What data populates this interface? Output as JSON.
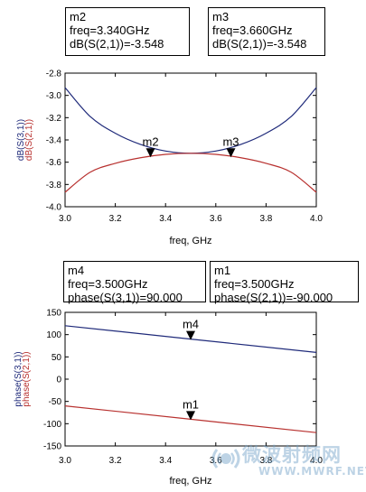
{
  "colors": {
    "blue_trace": "#1f2a7a",
    "red_trace": "#b8312f",
    "watermark": "#6e9fc6"
  },
  "chart_data": [
    {
      "type": "line",
      "xlabel": "freq, GHz",
      "ylabel_series": [
        "dB(S(3,1))",
        "dB(S(2,1))"
      ],
      "xlim": [
        3.0,
        4.0
      ],
      "ylim": [
        -4.0,
        -2.8
      ],
      "x_ticks": [
        "3.0",
        "3.2",
        "3.4",
        "3.6",
        "3.8",
        "4.0"
      ],
      "y_ticks": [
        "-2.8",
        "-3.0",
        "-3.2",
        "-3.4",
        "-3.6",
        "-3.8",
        "-4.0"
      ],
      "series": [
        {
          "name": "dB(S(3,1))",
          "color": "blue",
          "x": [
            3.0,
            3.1,
            3.2,
            3.3,
            3.4,
            3.5,
            3.6,
            3.7,
            3.8,
            3.9,
            4.0
          ],
          "y": [
            -2.93,
            -3.19,
            -3.34,
            -3.44,
            -3.5,
            -3.52,
            -3.5,
            -3.44,
            -3.34,
            -3.19,
            -2.93
          ]
        },
        {
          "name": "dB(S(2,1))",
          "color": "red",
          "x": [
            3.0,
            3.1,
            3.2,
            3.3,
            3.4,
            3.5,
            3.6,
            3.7,
            3.8,
            3.9,
            4.0
          ],
          "y": [
            -3.87,
            -3.69,
            -3.61,
            -3.56,
            -3.53,
            -3.52,
            -3.53,
            -3.56,
            -3.61,
            -3.69,
            -3.87
          ]
        }
      ],
      "markers": [
        {
          "label": "m2",
          "x": 3.34,
          "y": -3.548,
          "lines": [
            "m2",
            "freq=3.340GHz",
            "dB(S(2,1))=-3.548"
          ]
        },
        {
          "label": "m3",
          "x": 3.66,
          "y": -3.548,
          "lines": [
            "m3",
            "freq=3.660GHz",
            "dB(S(2,1))=-3.548"
          ]
        }
      ]
    },
    {
      "type": "line",
      "xlabel": "freq, GHz",
      "ylabel_series": [
        "phase(S(3,1))",
        "phase(S(2,1))"
      ],
      "xlim": [
        3.0,
        4.0
      ],
      "ylim": [
        -150,
        150
      ],
      "x_ticks": [
        "3.0",
        "3.2",
        "3.4",
        "3.6",
        "3.8",
        "4.0"
      ],
      "y_ticks": [
        "150",
        "100",
        "50",
        "0",
        "-50",
        "-100",
        "-150"
      ],
      "series": [
        {
          "name": "phase(S(3,1))",
          "color": "blue",
          "x": [
            3.0,
            3.5,
            4.0
          ],
          "y": [
            120,
            90,
            60
          ]
        },
        {
          "name": "phase(S(2,1))",
          "color": "red",
          "x": [
            3.0,
            3.5,
            4.0
          ],
          "y": [
            -60,
            -90,
            -120
          ]
        }
      ],
      "markers": [
        {
          "label": "m4",
          "x": 3.5,
          "y": 90,
          "lines": [
            "m4",
            "freq=3.500GHz",
            "phase(S(3,1))=90.000"
          ]
        },
        {
          "label": "m1",
          "x": 3.5,
          "y": -90,
          "lines": [
            "m1",
            "freq=3.500GHz",
            "phase(S(2,1))=-90.000"
          ]
        }
      ]
    }
  ],
  "watermark": {
    "text_cn": "微波射频网",
    "url": "WWW.MWRF.NET"
  }
}
